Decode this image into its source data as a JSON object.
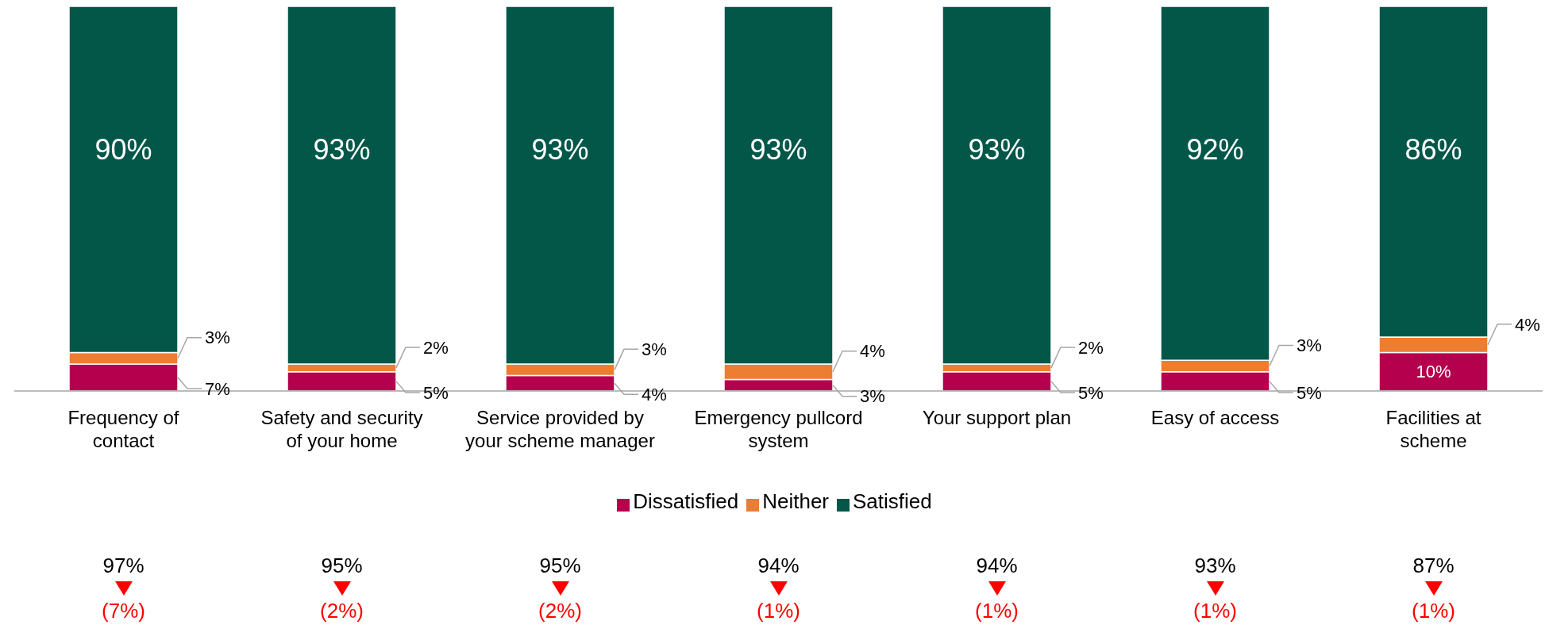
{
  "chart_data": {
    "type": "bar",
    "stacked": true,
    "categories": [
      "Frequency of contact",
      "Safety and security of your home",
      "Service provided by your scheme manager",
      "Emergency pullcord system",
      "Your support plan",
      "Easy of access",
      "Facilities at scheme"
    ],
    "series": [
      {
        "name": "Dissatisfied",
        "color": "#b5004e",
        "values": [
          7,
          5,
          4,
          3,
          5,
          5,
          10
        ],
        "value_labels": [
          "7%",
          "5%",
          "4%",
          "3%",
          "5%",
          "5%",
          "10%"
        ]
      },
      {
        "name": "Neither",
        "color": "#ed7d31",
        "values": [
          3,
          2,
          3,
          4,
          2,
          3,
          4
        ],
        "value_labels": [
          "3%",
          "2%",
          "3%",
          "4%",
          "2%",
          "3%",
          "4%"
        ]
      },
      {
        "name": "Satisfied",
        "color": "#025749",
        "values": [
          90,
          93,
          93,
          93,
          93,
          92,
          86
        ],
        "value_labels": [
          "90%",
          "93%",
          "93%",
          "93%",
          "93%",
          "92%",
          "86%"
        ]
      }
    ],
    "legend": "bottom",
    "annotations": [
      "97%",
      "(7%)",
      "95%",
      "(2%)",
      "95%",
      "(2%)",
      "94%",
      "(1%)",
      "94%",
      "(1%)",
      "93%",
      "(1%)",
      "87%",
      "(1%)"
    ]
  }
}
